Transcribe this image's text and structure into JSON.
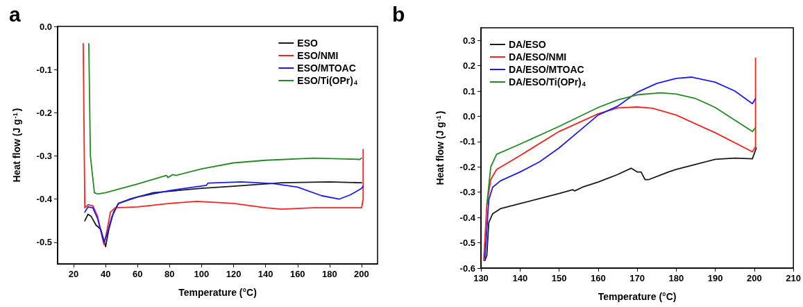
{
  "chart_data": [
    {
      "type": "line",
      "title": "a",
      "xlabel": "Temperature (°C)",
      "ylabel": "Heat flow (J g$^{-1}$)",
      "xlim": [
        10,
        210
      ],
      "xticks": [
        20,
        40,
        60,
        80,
        100,
        120,
        140,
        160,
        180,
        200
      ],
      "ylim": [
        -0.55,
        0
      ],
      "yticks": [
        {
          "value": -0.5,
          "label": "-0.5"
        },
        {
          "value": -0.4,
          "label": "-0.4"
        },
        {
          "value": -0.3,
          "label": "-0.3"
        },
        {
          "value": -0.2,
          "label": "-0.2"
        },
        {
          "value": -0.1,
          "label": "-0.1"
        },
        {
          "value": 0,
          "label": "0.0"
        }
      ],
      "grid": false,
      "legend": "top right",
      "marker": "none",
      "line_style": "solid",
      "series": [
        {
          "name": "ESO",
          "color": "#1a1a1a",
          "x": [
            27,
            29,
            31,
            34,
            37,
            40,
            42,
            45,
            48,
            55,
            70,
            100,
            120,
            150,
            180,
            200
          ],
          "values": [
            -0.45,
            -0.435,
            -0.44,
            -0.46,
            -0.47,
            -0.51,
            -0.47,
            -0.43,
            -0.41,
            -0.4,
            -0.385,
            -0.375,
            -0.37,
            -0.362,
            -0.36,
            -0.362
          ]
        },
        {
          "name": "ESO/NMI",
          "color": "#ff2020",
          "x": [
            26,
            27,
            29,
            32,
            35,
            38,
            39,
            41,
            43,
            46,
            60,
            80,
            97,
            120,
            140,
            150,
            170,
            200,
            201,
            201
          ],
          "values": [
            -0.04,
            -0.42,
            -0.413,
            -0.415,
            -0.44,
            -0.49,
            -0.505,
            -0.47,
            -0.43,
            -0.42,
            -0.418,
            -0.41,
            -0.405,
            -0.41,
            -0.42,
            -0.423,
            -0.42,
            -0.42,
            -0.4,
            -0.285
          ]
        },
        {
          "name": "ESO/MTOAC",
          "color": "#1a1aff",
          "x": [
            27,
            29,
            32,
            35,
            39,
            41,
            44,
            48,
            60,
            80,
            103,
            104,
            125,
            145,
            160,
            175,
            186,
            193,
            200,
            201
          ],
          "values": [
            -0.43,
            -0.418,
            -0.42,
            -0.445,
            -0.5,
            -0.48,
            -0.44,
            -0.41,
            -0.395,
            -0.38,
            -0.368,
            -0.363,
            -0.36,
            -0.364,
            -0.372,
            -0.392,
            -0.4,
            -0.39,
            -0.375,
            -0.37
          ]
        },
        {
          "name": "ESO/Ti(OPr)$_{4}$",
          "color": "#228b22",
          "x": [
            29.5,
            30.5,
            33,
            35,
            40,
            60,
            78,
            79,
            82,
            84,
            100,
            120,
            140,
            170,
            190,
            199,
            200
          ],
          "values": [
            -0.04,
            -0.3,
            -0.385,
            -0.388,
            -0.385,
            -0.365,
            -0.345,
            -0.35,
            -0.343,
            -0.345,
            -0.33,
            -0.316,
            -0.31,
            -0.305,
            -0.307,
            -0.308,
            -0.305
          ]
        }
      ]
    },
    {
      "type": "line",
      "title": "b",
      "xlabel": "Temperature (°C)",
      "ylabel": "Heat flow (J g$^{-1}$)",
      "xlim": [
        130,
        210
      ],
      "xticks": [
        130,
        140,
        150,
        160,
        170,
        180,
        190,
        200,
        210
      ],
      "ylim": [
        -0.6,
        0.35
      ],
      "yticks": [
        {
          "value": -0.6,
          "label": "-0.6"
        },
        {
          "value": -0.5,
          "label": "-0.5"
        },
        {
          "value": -0.4,
          "label": "-0.4"
        },
        {
          "value": -0.3,
          "label": "-0.3"
        },
        {
          "value": -0.2,
          "label": "-0.2"
        },
        {
          "value": -0.1,
          "label": "-0.1"
        },
        {
          "value": 0,
          "label": "0.0"
        },
        {
          "value": 0.1,
          "label": "0.1"
        },
        {
          "value": 0.2,
          "label": "0.2"
        },
        {
          "value": 0.3,
          "label": "0.3"
        }
      ],
      "grid": false,
      "legend": "top left",
      "marker": "none",
      "line_style": "solid",
      "series": [
        {
          "name": "DA/ESO",
          "color": "#1a1a1a",
          "x": [
            131,
            131.5,
            132,
            133,
            135,
            140,
            145,
            150,
            153.5,
            154,
            156,
            160,
            165,
            168.5,
            170,
            171,
            172,
            173,
            178,
            180,
            185,
            190,
            195,
            199.5,
            200.5
          ],
          "values": [
            -0.57,
            -0.55,
            -0.42,
            -0.385,
            -0.365,
            -0.345,
            -0.325,
            -0.305,
            -0.29,
            -0.295,
            -0.28,
            -0.26,
            -0.23,
            -0.205,
            -0.22,
            -0.22,
            -0.25,
            -0.25,
            -0.22,
            -0.21,
            -0.19,
            -0.17,
            -0.165,
            -0.168,
            -0.125
          ]
        },
        {
          "name": "DA/ESO/NMI",
          "color": "#ff2020",
          "x": [
            130.7,
            131.5,
            132.5,
            134,
            140,
            150,
            160,
            165,
            170,
            174,
            180,
            190,
            199.5,
            200.3,
            200.3
          ],
          "values": [
            -0.57,
            -0.35,
            -0.25,
            -0.21,
            -0.155,
            -0.06,
            0.01,
            0.033,
            0.037,
            0.032,
            0.005,
            -0.065,
            -0.14,
            -0.12,
            0.23
          ]
        },
        {
          "name": "DA/ESO/MTOAC",
          "color": "#1a1aff",
          "x": [
            131,
            132,
            133,
            135,
            140,
            145,
            150,
            155,
            160,
            165,
            170,
            175,
            180,
            184,
            190,
            195,
            199.5,
            200.3
          ],
          "values": [
            -0.56,
            -0.33,
            -0.28,
            -0.255,
            -0.22,
            -0.18,
            -0.125,
            -0.06,
            0.005,
            0.04,
            0.095,
            0.13,
            0.15,
            0.155,
            0.135,
            0.1,
            0.05,
            0.07
          ]
        },
        {
          "name": "DA/ESO/Ti(OPr)$_{4}$",
          "color": "#228b22",
          "x": [
            131.5,
            132.5,
            134,
            140,
            150,
            160,
            165,
            170,
            176,
            180,
            185,
            190,
            195,
            199.5,
            200.3
          ],
          "values": [
            -0.35,
            -0.2,
            -0.15,
            -0.11,
            -0.04,
            0.035,
            0.065,
            0.085,
            0.093,
            0.088,
            0.07,
            0.035,
            -0.015,
            -0.06,
            -0.045
          ]
        }
      ]
    }
  ]
}
